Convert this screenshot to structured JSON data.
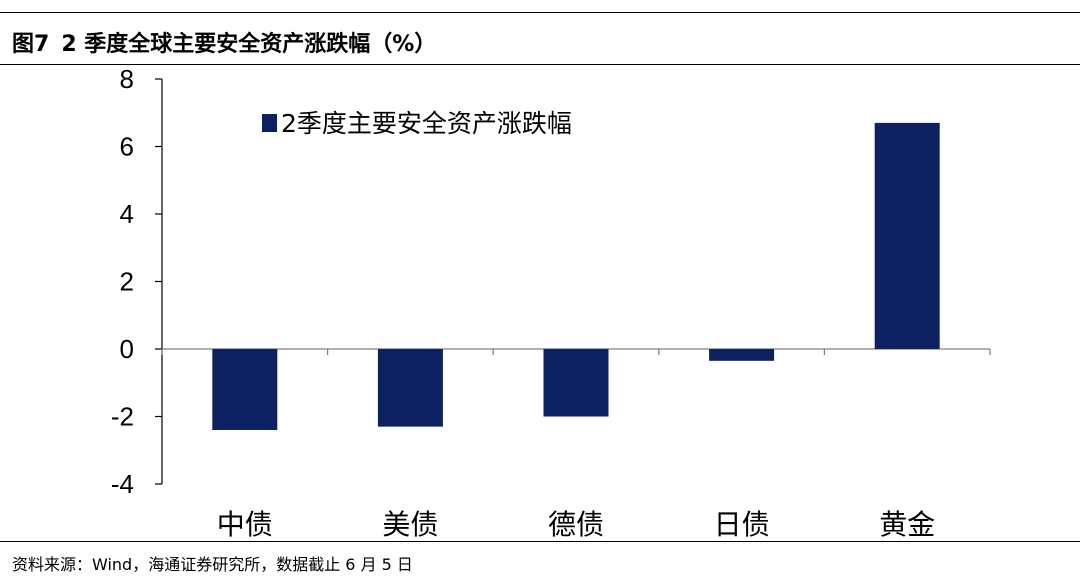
{
  "figure": {
    "number": "图7",
    "title": "2 季度全球主要安全资产涨跌幅（%）"
  },
  "chart_data": {
    "type": "bar",
    "categories": [
      "中债",
      "美债",
      "德债",
      "日债",
      "黄金"
    ],
    "series": [
      {
        "name": "2季度主要安全资产涨跌幅",
        "values": [
          -2.4,
          -2.3,
          -2.0,
          -0.35,
          6.7
        ],
        "color": "#0d2160"
      }
    ],
    "ylim": [
      -4,
      8
    ],
    "yticks": [
      8,
      6,
      4,
      2,
      0,
      -2,
      -4
    ],
    "ytick_labels": [
      "8",
      "6",
      "4",
      "2",
      "0",
      "-2",
      "-4"
    ],
    "grid": false,
    "legend_position": "top-left",
    "xlabel": "",
    "ylabel": ""
  },
  "source": "资料来源：Wind，海通证券研究所，数据截止 6 月 5 日"
}
